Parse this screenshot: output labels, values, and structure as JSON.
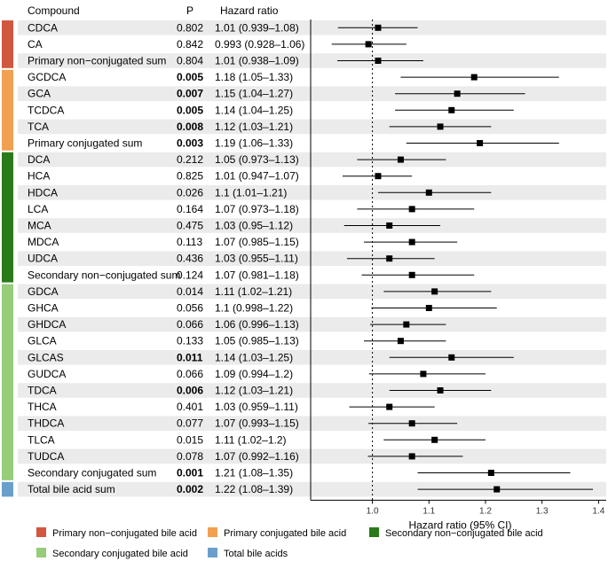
{
  "table": {
    "headers": {
      "compound": "Compound",
      "p": "P",
      "hr": "Hazard ratio"
    },
    "rows": [
      {
        "compound": "CDCA",
        "p": "0.802",
        "hr": "1.01 (0.939–1.08)",
        "bold": false,
        "group": 0,
        "est": 1.01,
        "lo": 0.939,
        "hi": 1.08
      },
      {
        "compound": "CA",
        "p": "0.842",
        "hr": "0.993 (0.928–1.06)",
        "bold": false,
        "group": 0,
        "est": 0.993,
        "lo": 0.928,
        "hi": 1.06
      },
      {
        "compound": "Primary non−conjugated sum",
        "p": "0.804",
        "hr": "1.01 (0.938–1.09)",
        "bold": false,
        "group": 0,
        "est": 1.01,
        "lo": 0.938,
        "hi": 1.09
      },
      {
        "compound": "GCDCA",
        "p": "0.005",
        "hr": "1.18 (1.05–1.33)",
        "bold": true,
        "group": 1,
        "est": 1.18,
        "lo": 1.05,
        "hi": 1.33
      },
      {
        "compound": "GCA",
        "p": "0.007",
        "hr": "1.15 (1.04–1.27)",
        "bold": true,
        "group": 1,
        "est": 1.15,
        "lo": 1.04,
        "hi": 1.27
      },
      {
        "compound": "TCDCA",
        "p": "0.005",
        "hr": "1.14 (1.04–1.25)",
        "bold": true,
        "group": 1,
        "est": 1.14,
        "lo": 1.04,
        "hi": 1.25
      },
      {
        "compound": "TCA",
        "p": "0.008",
        "hr": "1.12 (1.03–1.21)",
        "bold": true,
        "group": 1,
        "est": 1.12,
        "lo": 1.03,
        "hi": 1.21
      },
      {
        "compound": "Primary conjugated sum",
        "p": "0.003",
        "hr": "1.19 (1.06–1.33)",
        "bold": true,
        "group": 1,
        "est": 1.19,
        "lo": 1.06,
        "hi": 1.33
      },
      {
        "compound": "DCA",
        "p": "0.212",
        "hr": "1.05 (0.973–1.13)",
        "bold": false,
        "group": 2,
        "est": 1.05,
        "lo": 0.973,
        "hi": 1.13
      },
      {
        "compound": "HCA",
        "p": "0.825",
        "hr": "1.01 (0.947–1.07)",
        "bold": false,
        "group": 2,
        "est": 1.01,
        "lo": 0.947,
        "hi": 1.07
      },
      {
        "compound": "HDCA",
        "p": "0.026",
        "hr": "1.1 (1.01–1.21)",
        "bold": false,
        "group": 2,
        "est": 1.1,
        "lo": 1.01,
        "hi": 1.21
      },
      {
        "compound": "LCA",
        "p": "0.164",
        "hr": "1.07 (0.973–1.18)",
        "bold": false,
        "group": 2,
        "est": 1.07,
        "lo": 0.973,
        "hi": 1.18
      },
      {
        "compound": "MCA",
        "p": "0.475",
        "hr": "1.03 (0.95–1.12)",
        "bold": false,
        "group": 2,
        "est": 1.03,
        "lo": 0.95,
        "hi": 1.12
      },
      {
        "compound": "MDCA",
        "p": "0.113",
        "hr": "1.07 (0.985–1.15)",
        "bold": false,
        "group": 2,
        "est": 1.07,
        "lo": 0.985,
        "hi": 1.15
      },
      {
        "compound": "UDCA",
        "p": "0.436",
        "hr": "1.03 (0.955–1.11)",
        "bold": false,
        "group": 2,
        "est": 1.03,
        "lo": 0.955,
        "hi": 1.11
      },
      {
        "compound": "Secondary non−conjugated sum",
        "p": "0.124",
        "hr": "1.07 (0.981–1.18)",
        "bold": false,
        "group": 2,
        "est": 1.07,
        "lo": 0.981,
        "hi": 1.18
      },
      {
        "compound": "GDCA",
        "p": "0.014",
        "hr": "1.11 (1.02–1.21)",
        "bold": false,
        "group": 3,
        "est": 1.11,
        "lo": 1.02,
        "hi": 1.21
      },
      {
        "compound": "GHCA",
        "p": "0.056",
        "hr": "1.1 (0.998–1.22)",
        "bold": false,
        "group": 3,
        "est": 1.1,
        "lo": 0.998,
        "hi": 1.22
      },
      {
        "compound": "GHDCA",
        "p": "0.066",
        "hr": "1.06 (0.996–1.13)",
        "bold": false,
        "group": 3,
        "est": 1.06,
        "lo": 0.996,
        "hi": 1.13
      },
      {
        "compound": "GLCA",
        "p": "0.133",
        "hr": "1.05 (0.985–1.13)",
        "bold": false,
        "group": 3,
        "est": 1.05,
        "lo": 0.985,
        "hi": 1.13
      },
      {
        "compound": "GLCAS",
        "p": "0.011",
        "hr": "1.14 (1.03–1.25)",
        "bold": true,
        "group": 3,
        "est": 1.14,
        "lo": 1.03,
        "hi": 1.25
      },
      {
        "compound": "GUDCA",
        "p": "0.066",
        "hr": "1.09 (0.994–1.2)",
        "bold": false,
        "group": 3,
        "est": 1.09,
        "lo": 0.994,
        "hi": 1.2
      },
      {
        "compound": "TDCA",
        "p": "0.006",
        "hr": "1.12 (1.03–1.21)",
        "bold": true,
        "group": 3,
        "est": 1.12,
        "lo": 1.03,
        "hi": 1.21
      },
      {
        "compound": "THCA",
        "p": "0.401",
        "hr": "1.03 (0.959–1.11)",
        "bold": false,
        "group": 3,
        "est": 1.03,
        "lo": 0.959,
        "hi": 1.11
      },
      {
        "compound": "THDCA",
        "p": "0.077",
        "hr": "1.07 (0.993–1.15)",
        "bold": false,
        "group": 3,
        "est": 1.07,
        "lo": 0.993,
        "hi": 1.15
      },
      {
        "compound": "TLCA",
        "p": "0.015",
        "hr": "1.11 (1.02–1.2)",
        "bold": false,
        "group": 3,
        "est": 1.11,
        "lo": 1.02,
        "hi": 1.2
      },
      {
        "compound": "TUDCA",
        "p": "0.078",
        "hr": "1.07 (0.992–1.16)",
        "bold": false,
        "group": 3,
        "est": 1.07,
        "lo": 0.992,
        "hi": 1.16
      },
      {
        "compound": "Secondary conjugated sum",
        "p": "0.001",
        "hr": "1.21 (1.08–1.35)",
        "bold": true,
        "group": 3,
        "est": 1.21,
        "lo": 1.08,
        "hi": 1.35
      },
      {
        "compound": "Total bile acid sum",
        "p": "0.002",
        "hr": "1.22 (1.08–1.39)",
        "bold": true,
        "group": 4,
        "est": 1.22,
        "lo": 1.08,
        "hi": 1.39
      }
    ]
  },
  "groups": [
    {
      "name": "Primary non−conjugated bile acid",
      "color": "#d2573f"
    },
    {
      "name": "Primary conjugated bile acid",
      "color": "#f0a050"
    },
    {
      "name": "Secondary non−conjugated bile acid",
      "color": "#2a7a1a"
    },
    {
      "name": "Secondary conjugated bile acid",
      "color": "#96cc7a"
    },
    {
      "name": "Total bile acids",
      "color": "#6a9fcb"
    }
  ],
  "chart_data": {
    "type": "forest",
    "xlabel": "Hazard ratio (95% CI)",
    "xlim": [
      0.92,
      1.41
    ],
    "xticks": [
      "1.0",
      "1.1",
      "1.2",
      "1.3",
      "1.4"
    ],
    "xtick_values": [
      1.0,
      1.1,
      1.2,
      1.3,
      1.4
    ],
    "reference_line": 1.0,
    "legend_position": "bottom"
  }
}
